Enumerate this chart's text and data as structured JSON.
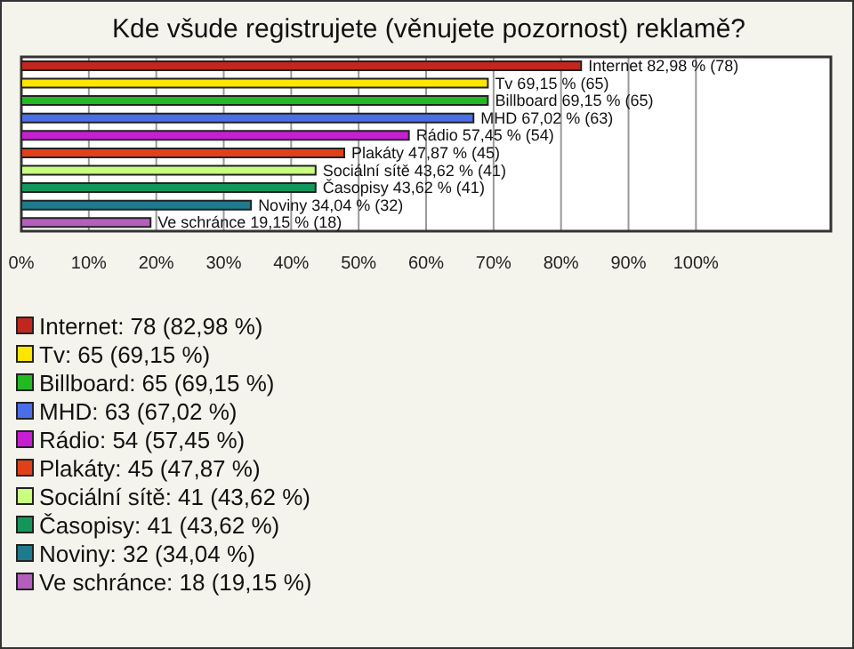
{
  "chart_data": {
    "type": "bar",
    "orientation": "horizontal",
    "title": "Kde všude registrujete (věnujete pozornost) reklamě?",
    "categories": [
      null,
      null,
      null,
      null,
      null,
      null,
      null,
      null,
      null,
      null
    ],
    "values": [
      82.98,
      69.15,
      69.15,
      67.02,
      57.45,
      47.87,
      43.62,
      43.62,
      34.04,
      19.15
    ],
    "colors": [
      "#c0271e",
      "#ffe600",
      "#22b922",
      "#4a6ee8",
      "#c81ed2",
      "#e0401a",
      "#c8ff80",
      "#14965a",
      "#1e7a8c",
      "#b45fbe"
    ],
    "value_labels": [
      "Internet 82,98 % (78)",
      "Tv 69,15 % (65)",
      "Billboard 69,15 % (65)",
      "MHD 67,02 % (63)",
      "Rádio 57,45 % (54)",
      "Plakáty 47,87 % (45)",
      "Sociální sítě 43,62 % (41)",
      "Časopisy 43,62 % (41)",
      "Noviny 34,04 % (32)",
      "Ve schránce 19,15 % (18)"
    ],
    "annotations": [
      "Internet: 78 (82,98 %)",
      "Tv: 65 (69,15 %)",
      "Billboard: 65 (69,15 %)",
      "MHD: 63 (67,02 %)",
      "Rádio: 54 (57,45 %)",
      "Plakáty: 45 (47,87 %)",
      "Sociální sítě: 41 (43,62 %)",
      "Časopisy: 41 (43,62 %)",
      "Noviny: 32 (34,04 %)",
      "Ve schránce: 18 (19,15 %)"
    ],
    "xlim": [
      0,
      120
    ],
    "xticks": [
      {
        "value": 0,
        "label": "0%"
      },
      {
        "value": 10,
        "label": "10%"
      },
      {
        "value": 20,
        "label": "20%"
      },
      {
        "value": 30,
        "label": "30%"
      },
      {
        "value": 40,
        "label": "40%"
      },
      {
        "value": 50,
        "label": "50%"
      },
      {
        "value": 60,
        "label": "60%"
      },
      {
        "value": 70,
        "label": "70%"
      },
      {
        "value": 80,
        "label": "80%"
      },
      {
        "value": 90,
        "label": "90%"
      },
      {
        "value": 100,
        "label": "100%"
      }
    ],
    "grid": "x",
    "tick_labels": "x"
  }
}
